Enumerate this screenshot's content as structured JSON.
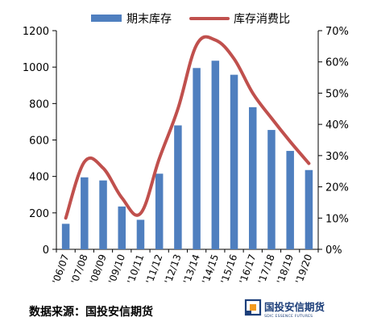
{
  "chart_data": {
    "type": "bar",
    "categories": [
      "'06/07",
      "'07/08",
      "'08/09",
      "'09/10",
      "'10/11",
      "'11/12",
      "'12/13",
      "'13/14",
      "'14/15",
      "'15/16",
      "'16/17",
      "'17/18",
      "'18/19",
      "'19/20"
    ],
    "series": [
      {
        "name": "期末库存",
        "type": "bar",
        "axis": "left",
        "values": [
          140,
          395,
          378,
          235,
          162,
          415,
          680,
          995,
          1035,
          958,
          780,
          655,
          540,
          435
        ]
      },
      {
        "name": "库存消费比",
        "type": "line",
        "axis": "right",
        "unit": "%",
        "smooth": true,
        "values": [
          10,
          28,
          26,
          16.5,
          11.5,
          29,
          45,
          65.5,
          67,
          61,
          50,
          42,
          34.5,
          27.5
        ]
      }
    ],
    "y_left": {
      "ylim": [
        0,
        1200
      ],
      "ticks": [
        0,
        200,
        400,
        600,
        800,
        1000,
        1200
      ],
      "tick_labels": [
        "0",
        "200",
        "400",
        "600",
        "800",
        "1000",
        "1200"
      ]
    },
    "y_right": {
      "ylim": [
        0,
        70
      ],
      "ticks": [
        0,
        10,
        20,
        30,
        40,
        50,
        60,
        70
      ],
      "tick_labels": [
        "0%",
        "10%",
        "20%",
        "30%",
        "40%",
        "50%",
        "60%",
        "70%"
      ]
    },
    "grid": false,
    "legend": "top"
  },
  "colors": {
    "bar": "#4f7fbf",
    "line": "#c0504d",
    "logo_blue": "#1d3f7a",
    "logo_orange": "#f39a1e"
  },
  "source": "数据来源：国投安信期货",
  "logo": {
    "name": "国投安信期货",
    "subtitle": "SDIC ESSENCE FUTURES"
  }
}
